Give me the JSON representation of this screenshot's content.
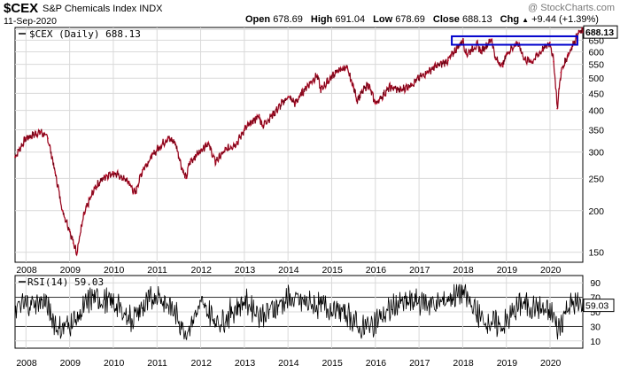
{
  "header": {
    "symbol": "$CEX",
    "name": "S&P Chemicals Index INDX",
    "date": "11-Sep-2020",
    "watermark": "@ StockCharts.com",
    "open_label": "Open",
    "open": "678.69",
    "high_label": "High",
    "high": "691.04",
    "low_label": "Low",
    "low": "678.69",
    "close_label": "Close",
    "close": "688.13",
    "chg_label": "Chg",
    "chg": "+9.44 (+1.39%)",
    "chg_direction": "up-triangle"
  },
  "colors": {
    "price_line": "#c8102e",
    "price_line_dark": "#000000",
    "box": "#0000cc",
    "grid": "#d9d9d9",
    "rsi_line": "#000000",
    "watermark": "#7a7a7a"
  },
  "chart_data": [
    {
      "type": "line",
      "legend": "$CEX (Daily) 688.13",
      "last_value_label": "688.13",
      "y_scale": "log",
      "ylim": [
        140,
        710
      ],
      "y_ticks": [
        150,
        200,
        250,
        300,
        350,
        400,
        450,
        500,
        550,
        600,
        650,
        700
      ],
      "x_ticks": [
        "2008",
        "2009",
        "2010",
        "2011",
        "2012",
        "2013",
        "2014",
        "2015",
        "2016",
        "2017",
        "2018",
        "2019",
        "2020"
      ],
      "x": [
        "2007-10",
        "2008-01",
        "2008-05",
        "2008-07",
        "2008-09",
        "2008-11",
        "2009-01",
        "2009-02",
        "2009-03",
        "2009-05",
        "2009-08",
        "2009-11",
        "2010-01",
        "2010-05",
        "2010-07",
        "2010-09",
        "2011-01",
        "2011-04",
        "2011-06",
        "2011-08",
        "2011-09",
        "2011-10",
        "2011-12",
        "2012-03",
        "2012-05",
        "2012-08",
        "2012-11",
        "2013-01",
        "2013-05",
        "2013-06",
        "2013-09",
        "2014-01",
        "2014-03",
        "2014-06",
        "2014-09",
        "2014-10",
        "2014-12",
        "2015-02",
        "2015-05",
        "2015-07",
        "2015-08",
        "2015-11",
        "2016-01",
        "2016-02",
        "2016-05",
        "2016-08",
        "2016-11",
        "2017-03",
        "2017-06",
        "2017-09",
        "2018-01",
        "2018-02",
        "2018-05",
        "2018-06",
        "2018-09",
        "2018-10",
        "2018-12",
        "2019-01",
        "2019-04",
        "2019-06",
        "2019-08",
        "2019-11",
        "2020-01",
        "2020-02",
        "2020-03",
        "2020-04",
        "2020-06",
        "2020-07",
        "2020-09"
      ],
      "values": [
        290,
        330,
        345,
        330,
        260,
        200,
        175,
        160,
        150,
        195,
        235,
        255,
        260,
        245,
        225,
        265,
        305,
        330,
        320,
        265,
        250,
        280,
        295,
        320,
        280,
        305,
        320,
        350,
        385,
        360,
        390,
        440,
        420,
        470,
        510,
        460,
        490,
        520,
        540,
        470,
        430,
        480,
        420,
        430,
        470,
        460,
        480,
        520,
        545,
        565,
        650,
        590,
        630,
        600,
        655,
        570,
        545,
        590,
        640,
        570,
        560,
        610,
        640,
        560,
        405,
        520,
        590,
        620,
        688
      ],
      "annotation": {
        "type": "rectangle",
        "from": "2017-10",
        "to": "2020-09",
        "y_range": [
          630,
          668
        ]
      }
    },
    {
      "type": "line",
      "legend": "RSI(14) 59.03",
      "last_value_label": "59.03",
      "ylim": [
        0,
        100
      ],
      "y_ticks": [
        10,
        30,
        50,
        70,
        90
      ],
      "reference_lines": [
        30,
        70
      ],
      "x_ticks": [
        "2008",
        "2009",
        "2010",
        "2011",
        "2012",
        "2013",
        "2014",
        "2015",
        "2016",
        "2017",
        "2018",
        "2019",
        "2020"
      ],
      "x": [
        "2007-10",
        "2008-01",
        "2008-06",
        "2008-10",
        "2009-03",
        "2009-07",
        "2010-01",
        "2010-06",
        "2011-01",
        "2011-05",
        "2011-09",
        "2012-01",
        "2012-06",
        "2013-01",
        "2013-06",
        "2014-01",
        "2014-06",
        "2015-01",
        "2015-06",
        "2015-09",
        "2016-02",
        "2016-07",
        "2017-01",
        "2017-06",
        "2018-01",
        "2018-06",
        "2018-12",
        "2019-05",
        "2019-10",
        "2020-02",
        "2020-03",
        "2020-06",
        "2020-09"
      ],
      "values": [
        55,
        60,
        65,
        25,
        40,
        70,
        62,
        40,
        75,
        55,
        22,
        60,
        35,
        65,
        45,
        68,
        62,
        55,
        45,
        25,
        40,
        60,
        65,
        60,
        78,
        40,
        30,
        62,
        55,
        45,
        22,
        60,
        59
      ]
    }
  ]
}
